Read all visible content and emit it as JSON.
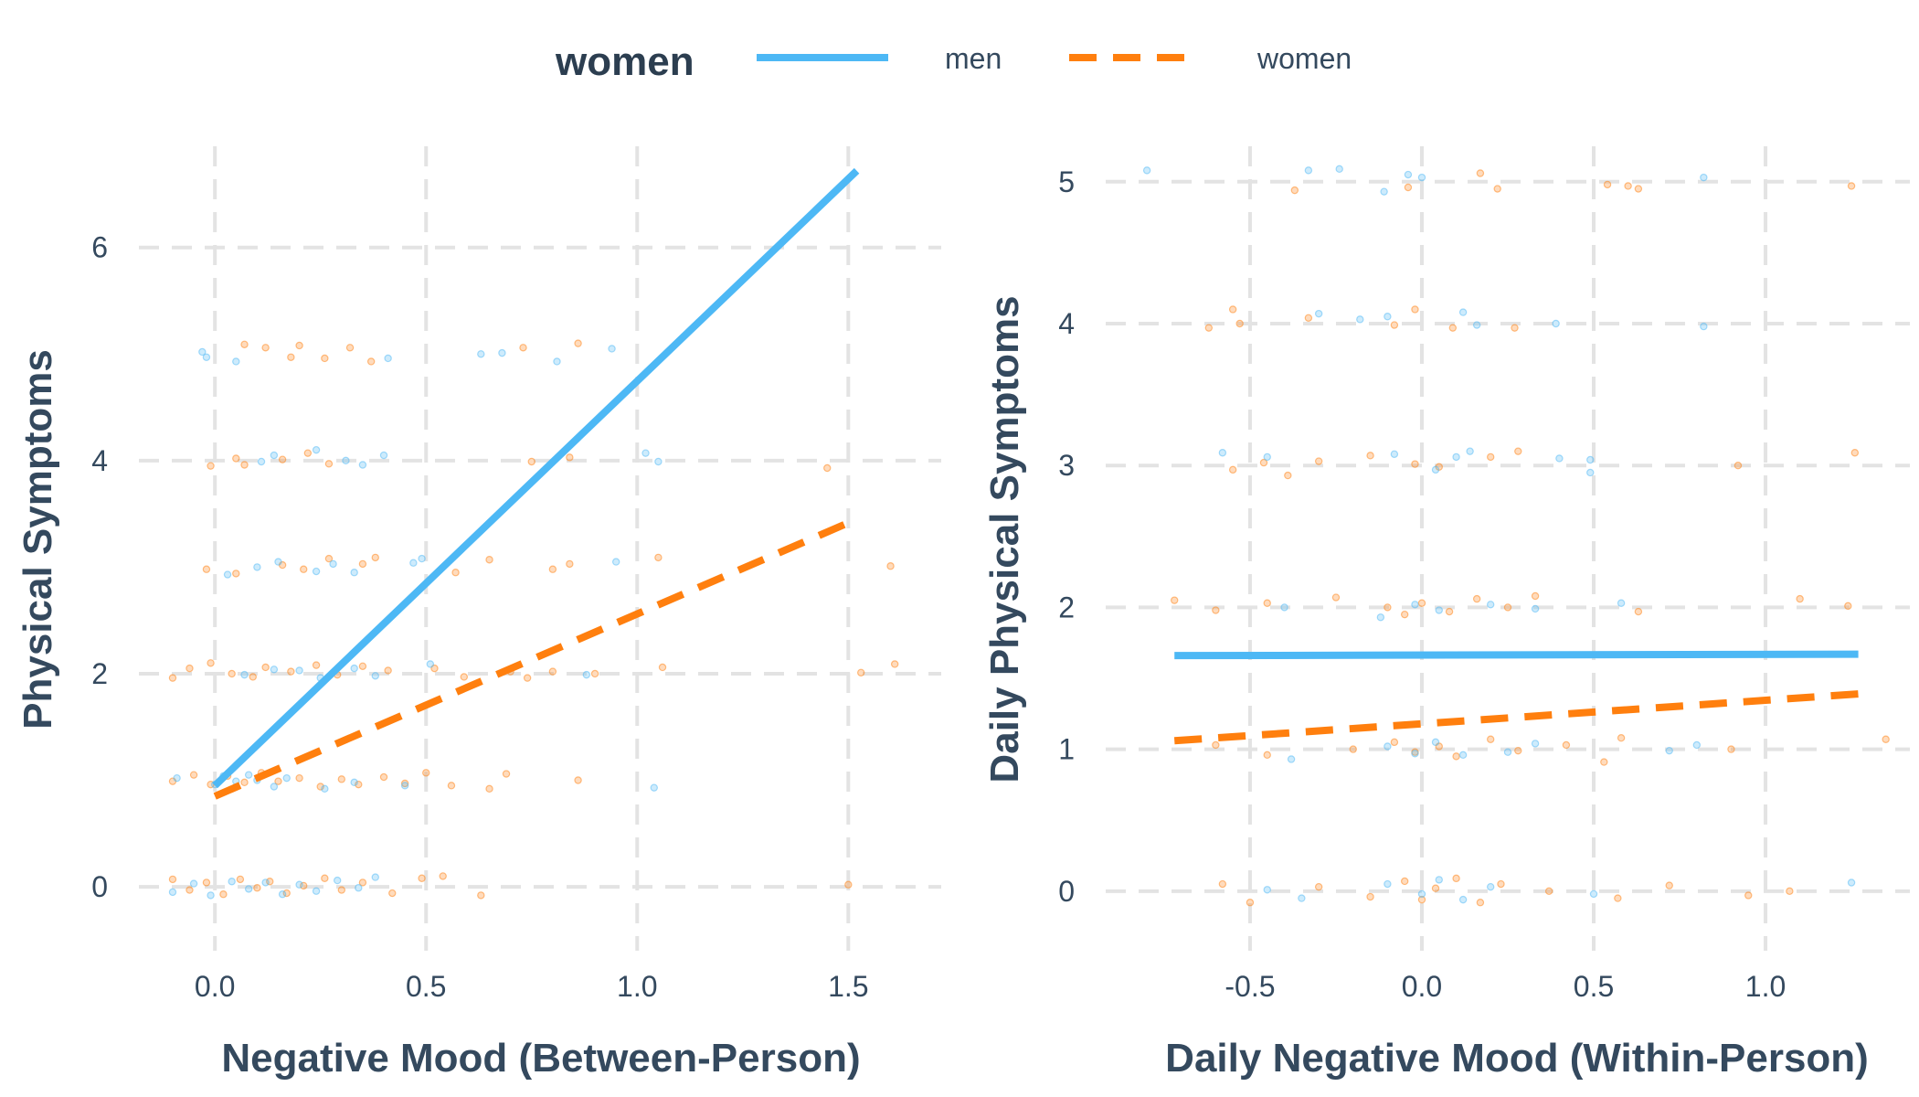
{
  "legend": {
    "title": "women",
    "entries": [
      {
        "label": "men",
        "color": "#4db8f5",
        "style": "solid"
      },
      {
        "label": "women",
        "color": "#ff7f0e",
        "style": "dashed"
      }
    ]
  },
  "chart_data": [
    {
      "type": "scatter",
      "title": "",
      "xlabel": "Negative Mood (Between-Person)",
      "ylabel": "Physical Symptoms",
      "xlim": [
        -0.18,
        1.72
      ],
      "ylim": [
        -0.6,
        6.95
      ],
      "xticks": [
        0.0,
        0.5,
        1.0,
        1.5
      ],
      "xtick_labels": [
        "0.0",
        "0.5",
        "1.0",
        "1.5"
      ],
      "yticks": [
        0,
        2,
        4,
        6
      ],
      "ytick_labels": [
        "0",
        "2",
        "4",
        "6"
      ],
      "grid": true,
      "fit_lines": [
        {
          "series": "men",
          "x": [
            0.0,
            1.52
          ],
          "y": [
            0.95,
            6.72
          ]
        },
        {
          "series": "women",
          "x": [
            0.0,
            1.52
          ],
          "y": [
            0.85,
            3.45
          ]
        }
      ],
      "points": {
        "men": [
          [
            -0.03,
            5.02
          ],
          [
            -0.02,
            4.97
          ],
          [
            0.05,
            4.93
          ],
          [
            0.41,
            4.96
          ],
          [
            0.63,
            5.0
          ],
          [
            0.68,
            5.01
          ],
          [
            0.81,
            4.93
          ],
          [
            0.94,
            5.05
          ],
          [
            0.11,
            3.99
          ],
          [
            0.14,
            4.05
          ],
          [
            0.24,
            4.1
          ],
          [
            0.31,
            4.0
          ],
          [
            0.35,
            3.96
          ],
          [
            0.4,
            4.05
          ],
          [
            1.02,
            4.07
          ],
          [
            1.05,
            3.99
          ],
          [
            0.1,
            3.0
          ],
          [
            0.15,
            3.05
          ],
          [
            0.24,
            2.96
          ],
          [
            0.28,
            3.03
          ],
          [
            0.33,
            2.95
          ],
          [
            0.47,
            3.04
          ],
          [
            0.49,
            3.08
          ],
          [
            0.95,
            3.05
          ],
          [
            0.03,
            2.93
          ],
          [
            0.07,
            1.99
          ],
          [
            0.14,
            2.04
          ],
          [
            0.2,
            2.03
          ],
          [
            0.25,
            1.96
          ],
          [
            0.33,
            2.05
          ],
          [
            0.38,
            1.98
          ],
          [
            0.51,
            2.09
          ],
          [
            0.88,
            1.99
          ],
          [
            -0.09,
            1.02
          ],
          [
            0.0,
            0.96
          ],
          [
            0.02,
            1.04
          ],
          [
            0.05,
            0.99
          ],
          [
            0.08,
            1.05
          ],
          [
            0.1,
            1.0
          ],
          [
            0.14,
            0.94
          ],
          [
            0.17,
            1.02
          ],
          [
            0.26,
            0.92
          ],
          [
            0.33,
            0.98
          ],
          [
            0.45,
            0.95
          ],
          [
            1.04,
            0.93
          ],
          [
            -0.1,
            -0.05
          ],
          [
            -0.05,
            0.03
          ],
          [
            -0.01,
            -0.08
          ],
          [
            0.04,
            0.05
          ],
          [
            0.08,
            -0.02
          ],
          [
            0.12,
            0.04
          ],
          [
            0.16,
            -0.07
          ],
          [
            0.2,
            0.02
          ],
          [
            0.24,
            -0.04
          ],
          [
            0.29,
            0.06
          ],
          [
            0.34,
            -0.01
          ],
          [
            0.38,
            0.09
          ]
        ],
        "women": [
          [
            0.07,
            5.09
          ],
          [
            0.12,
            5.06
          ],
          [
            0.18,
            4.97
          ],
          [
            0.2,
            5.08
          ],
          [
            0.26,
            4.96
          ],
          [
            0.32,
            5.06
          ],
          [
            0.37,
            4.93
          ],
          [
            0.73,
            5.06
          ],
          [
            0.86,
            5.1
          ],
          [
            -0.01,
            3.95
          ],
          [
            0.05,
            4.02
          ],
          [
            0.07,
            3.96
          ],
          [
            0.16,
            4.01
          ],
          [
            0.22,
            4.07
          ],
          [
            0.27,
            3.97
          ],
          [
            0.75,
            3.99
          ],
          [
            0.84,
            4.03
          ],
          [
            1.45,
            3.93
          ],
          [
            -0.02,
            2.98
          ],
          [
            0.05,
            2.94
          ],
          [
            0.16,
            3.02
          ],
          [
            0.21,
            2.98
          ],
          [
            0.27,
            3.08
          ],
          [
            0.35,
            3.03
          ],
          [
            0.38,
            3.09
          ],
          [
            0.57,
            2.95
          ],
          [
            0.65,
            3.07
          ],
          [
            0.8,
            2.98
          ],
          [
            0.84,
            3.03
          ],
          [
            1.05,
            3.09
          ],
          [
            1.6,
            3.01
          ],
          [
            -0.1,
            1.96
          ],
          [
            -0.06,
            2.05
          ],
          [
            -0.01,
            2.1
          ],
          [
            0.04,
            2.0
          ],
          [
            0.09,
            1.97
          ],
          [
            0.12,
            2.06
          ],
          [
            0.18,
            2.02
          ],
          [
            0.24,
            2.08
          ],
          [
            0.29,
            1.99
          ],
          [
            0.35,
            2.07
          ],
          [
            0.41,
            2.03
          ],
          [
            0.52,
            2.05
          ],
          [
            0.59,
            1.97
          ],
          [
            0.7,
            2.02
          ],
          [
            0.74,
            1.96
          ],
          [
            0.8,
            2.02
          ],
          [
            0.9,
            2.0
          ],
          [
            1.06,
            2.06
          ],
          [
            1.53,
            2.01
          ],
          [
            1.61,
            2.09
          ],
          [
            -0.1,
            0.99
          ],
          [
            -0.05,
            1.05
          ],
          [
            -0.01,
            0.96
          ],
          [
            0.03,
            1.04
          ],
          [
            0.07,
            0.98
          ],
          [
            0.11,
            1.07
          ],
          [
            0.15,
            0.99
          ],
          [
            0.2,
            1.02
          ],
          [
            0.25,
            0.94
          ],
          [
            0.3,
            1.01
          ],
          [
            0.34,
            0.96
          ],
          [
            0.4,
            1.03
          ],
          [
            0.45,
            0.97
          ],
          [
            0.5,
            1.07
          ],
          [
            0.56,
            0.95
          ],
          [
            0.65,
            0.92
          ],
          [
            0.69,
            1.06
          ],
          [
            0.86,
            1.0
          ],
          [
            -0.1,
            0.07
          ],
          [
            -0.06,
            -0.03
          ],
          [
            -0.02,
            0.04
          ],
          [
            0.02,
            -0.07
          ],
          [
            0.06,
            0.07
          ],
          [
            0.1,
            -0.01
          ],
          [
            0.13,
            0.05
          ],
          [
            0.17,
            -0.06
          ],
          [
            0.21,
            0.01
          ],
          [
            0.26,
            0.08
          ],
          [
            0.3,
            -0.03
          ],
          [
            0.35,
            0.04
          ],
          [
            0.42,
            -0.06
          ],
          [
            0.49,
            0.08
          ],
          [
            0.54,
            0.1
          ],
          [
            0.63,
            -0.08
          ],
          [
            1.5,
            0.02
          ]
        ]
      }
    },
    {
      "type": "scatter",
      "title": "",
      "xlabel": "Daily Negative Mood (Within-Person)",
      "ylabel": "Daily Physical Symptoms",
      "xlim": [
        -0.92,
        1.42
      ],
      "ylim": [
        -0.42,
        5.25
      ],
      "xticks": [
        -0.5,
        0.0,
        0.5,
        1.0
      ],
      "xtick_labels": [
        "-0.5",
        "0.0",
        "0.5",
        "1.0"
      ],
      "yticks": [
        0,
        1,
        2,
        3,
        4,
        5
      ],
      "ytick_labels": [
        "0",
        "1",
        "2",
        "3",
        "4",
        "5"
      ],
      "grid": true,
      "fit_lines": [
        {
          "series": "men",
          "x": [
            -0.72,
            1.27
          ],
          "y": [
            1.66,
            1.67
          ]
        },
        {
          "series": "women",
          "x": [
            -0.72,
            1.27
          ],
          "y": [
            1.06,
            1.39
          ]
        }
      ],
      "points": {
        "men": [
          [
            -0.8,
            5.08
          ],
          [
            -0.33,
            5.08
          ],
          [
            -0.24,
            5.09
          ],
          [
            -0.04,
            5.05
          ],
          [
            0.0,
            5.03
          ],
          [
            -0.11,
            4.93
          ],
          [
            0.82,
            5.03
          ],
          [
            -0.3,
            4.07
          ],
          [
            -0.18,
            4.03
          ],
          [
            -0.1,
            4.05
          ],
          [
            0.12,
            4.08
          ],
          [
            0.16,
            3.99
          ],
          [
            0.39,
            4.0
          ],
          [
            0.82,
            3.98
          ],
          [
            -0.58,
            3.09
          ],
          [
            -0.45,
            3.06
          ],
          [
            -0.08,
            3.08
          ],
          [
            0.04,
            2.97
          ],
          [
            0.1,
            3.06
          ],
          [
            0.14,
            3.1
          ],
          [
            0.4,
            3.05
          ],
          [
            0.49,
            3.04
          ],
          [
            0.49,
            2.95
          ],
          [
            -0.4,
            2.0
          ],
          [
            -0.12,
            1.93
          ],
          [
            -0.02,
            2.02
          ],
          [
            0.05,
            1.98
          ],
          [
            0.2,
            2.02
          ],
          [
            0.33,
            1.99
          ],
          [
            0.58,
            2.03
          ],
          [
            -0.38,
            0.93
          ],
          [
            -0.1,
            1.02
          ],
          [
            -0.02,
            0.97
          ],
          [
            0.04,
            1.05
          ],
          [
            0.12,
            0.96
          ],
          [
            0.25,
            0.98
          ],
          [
            0.33,
            1.04
          ],
          [
            0.72,
            0.99
          ],
          [
            0.8,
            1.03
          ],
          [
            -0.45,
            0.01
          ],
          [
            -0.35,
            -0.05
          ],
          [
            -0.1,
            0.05
          ],
          [
            0.0,
            -0.02
          ],
          [
            0.05,
            0.08
          ],
          [
            0.12,
            -0.06
          ],
          [
            0.2,
            0.03
          ],
          [
            0.5,
            -0.02
          ],
          [
            1.25,
            0.06
          ]
        ],
        "women": [
          [
            -0.37,
            4.94
          ],
          [
            -0.04,
            4.96
          ],
          [
            0.17,
            5.06
          ],
          [
            0.22,
            4.95
          ],
          [
            0.54,
            4.98
          ],
          [
            0.6,
            4.97
          ],
          [
            0.63,
            4.95
          ],
          [
            1.25,
            4.97
          ],
          [
            -0.62,
            3.97
          ],
          [
            -0.55,
            4.1
          ],
          [
            -0.53,
            4.0
          ],
          [
            -0.33,
            4.04
          ],
          [
            -0.08,
            3.99
          ],
          [
            -0.02,
            4.1
          ],
          [
            0.09,
            3.97
          ],
          [
            0.27,
            3.97
          ],
          [
            -0.55,
            2.97
          ],
          [
            -0.46,
            3.02
          ],
          [
            -0.39,
            2.93
          ],
          [
            -0.3,
            3.03
          ],
          [
            -0.15,
            3.07
          ],
          [
            -0.02,
            3.01
          ],
          [
            0.05,
            2.99
          ],
          [
            0.2,
            3.06
          ],
          [
            0.28,
            3.1
          ],
          [
            0.92,
            3.0
          ],
          [
            1.26,
            3.09
          ],
          [
            -0.72,
            2.05
          ],
          [
            -0.6,
            1.98
          ],
          [
            -0.45,
            2.03
          ],
          [
            -0.25,
            2.07
          ],
          [
            -0.1,
            2.0
          ],
          [
            -0.05,
            1.95
          ],
          [
            0.0,
            2.03
          ],
          [
            0.08,
            1.97
          ],
          [
            0.16,
            2.06
          ],
          [
            0.25,
            2.0
          ],
          [
            0.33,
            2.08
          ],
          [
            0.63,
            1.97
          ],
          [
            1.1,
            2.06
          ],
          [
            1.24,
            2.01
          ],
          [
            -0.6,
            1.03
          ],
          [
            -0.45,
            0.96
          ],
          [
            -0.2,
            1.0
          ],
          [
            -0.08,
            1.05
          ],
          [
            -0.02,
            0.98
          ],
          [
            0.05,
            1.02
          ],
          [
            0.1,
            0.95
          ],
          [
            0.2,
            1.07
          ],
          [
            0.28,
            0.99
          ],
          [
            0.42,
            1.03
          ],
          [
            0.53,
            0.91
          ],
          [
            0.58,
            1.08
          ],
          [
            0.9,
            1.0
          ],
          [
            1.35,
            1.07
          ],
          [
            -0.58,
            0.05
          ],
          [
            -0.5,
            -0.08
          ],
          [
            -0.3,
            0.03
          ],
          [
            -0.15,
            -0.04
          ],
          [
            -0.05,
            0.07
          ],
          [
            0.0,
            -0.06
          ],
          [
            0.04,
            0.02
          ],
          [
            0.1,
            0.09
          ],
          [
            0.17,
            -0.08
          ],
          [
            0.23,
            0.05
          ],
          [
            0.37,
            0.0
          ],
          [
            0.57,
            -0.05
          ],
          [
            0.72,
            0.04
          ],
          [
            0.95,
            -0.03
          ],
          [
            1.07,
            0.0
          ]
        ]
      }
    }
  ]
}
